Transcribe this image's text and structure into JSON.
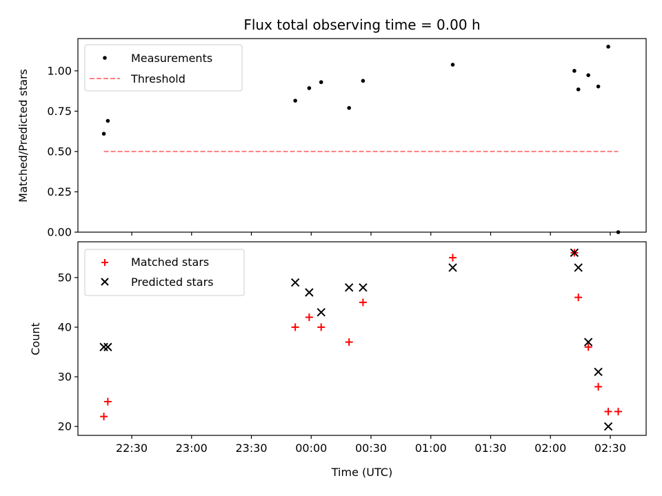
{
  "chart_data": [
    {
      "type": "scatter",
      "title": "Flux total observing time = 0.00 h",
      "xlabel": "",
      "ylabel": "Matched/Predicted stars",
      "ylim": [
        0.0,
        1.2
      ],
      "xlim": [
        "22:03",
        "02:48"
      ],
      "yticks": [
        "0.00",
        "0.25",
        "0.50",
        "0.75",
        "1.00"
      ],
      "ytick_values": [
        0.0,
        0.25,
        0.5,
        0.75,
        1.0
      ],
      "xtick_values": [
        "22:30",
        "23:00",
        "23:30",
        "00:00",
        "00:30",
        "01:00",
        "01:30",
        "02:00",
        "02:30"
      ],
      "legend_position": "upper left",
      "grid": false,
      "series": [
        {
          "name": "Measurements",
          "marker": "dot",
          "color": "#000000",
          "points": [
            {
              "x": "22:16",
              "y": 0.61
            },
            {
              "x": "22:18",
              "y": 0.69
            },
            {
              "x": "23:52",
              "y": 0.815
            },
            {
              "x": "23:59",
              "y": 0.893
            },
            {
              "x": "00:05",
              "y": 0.93
            },
            {
              "x": "00:19",
              "y": 0.77
            },
            {
              "x": "00:26",
              "y": 0.938
            },
            {
              "x": "01:11",
              "y": 1.038
            },
            {
              "x": "02:12",
              "y": 1.0
            },
            {
              "x": "02:14",
              "y": 0.885
            },
            {
              "x": "02:19",
              "y": 0.973
            },
            {
              "x": "02:24",
              "y": 0.903
            },
            {
              "x": "02:29",
              "y": 1.15
            },
            {
              "x": "02:34",
              "y": 0.0
            }
          ]
        },
        {
          "name": "Threshold",
          "style": "dashed",
          "color": "#ff7f7f",
          "x": [
            "22:16",
            "02:34"
          ],
          "y": [
            0.5,
            0.5
          ]
        }
      ]
    },
    {
      "type": "scatter",
      "title": "",
      "xlabel": "Time (UTC)",
      "ylabel": "Count",
      "ylim": [
        18.2,
        57.2
      ],
      "xlim": [
        "22:03",
        "02:48"
      ],
      "yticks": [
        "20",
        "30",
        "40",
        "50"
      ],
      "ytick_values": [
        20,
        30,
        40,
        50
      ],
      "xticks": [
        "22:30",
        "23:00",
        "23:30",
        "00:00",
        "00:30",
        "01:00",
        "01:30",
        "02:00",
        "02:30"
      ],
      "legend_position": "upper left",
      "grid": false,
      "series": [
        {
          "name": "Matched stars",
          "marker": "plus",
          "color": "#ff0000",
          "points": [
            {
              "x": "22:16",
              "y": 22
            },
            {
              "x": "22:18",
              "y": 25
            },
            {
              "x": "23:52",
              "y": 40
            },
            {
              "x": "23:59",
              "y": 42
            },
            {
              "x": "00:05",
              "y": 40
            },
            {
              "x": "00:19",
              "y": 37
            },
            {
              "x": "00:26",
              "y": 45
            },
            {
              "x": "01:11",
              "y": 54
            },
            {
              "x": "02:12",
              "y": 55
            },
            {
              "x": "02:14",
              "y": 46
            },
            {
              "x": "02:19",
              "y": 36
            },
            {
              "x": "02:24",
              "y": 28
            },
            {
              "x": "02:29",
              "y": 23
            },
            {
              "x": "02:34",
              "y": 23
            }
          ]
        },
        {
          "name": "Predicted stars",
          "marker": "x",
          "color": "#000000",
          "points": [
            {
              "x": "22:16",
              "y": 36
            },
            {
              "x": "22:18",
              "y": 36
            },
            {
              "x": "23:52",
              "y": 49
            },
            {
              "x": "23:59",
              "y": 47
            },
            {
              "x": "00:05",
              "y": 43
            },
            {
              "x": "00:19",
              "y": 48
            },
            {
              "x": "00:26",
              "y": 48
            },
            {
              "x": "01:11",
              "y": 52
            },
            {
              "x": "02:12",
              "y": 55
            },
            {
              "x": "02:14",
              "y": 52
            },
            {
              "x": "02:19",
              "y": 37
            },
            {
              "x": "02:24",
              "y": 31
            },
            {
              "x": "02:29",
              "y": 20
            }
          ]
        }
      ]
    }
  ]
}
